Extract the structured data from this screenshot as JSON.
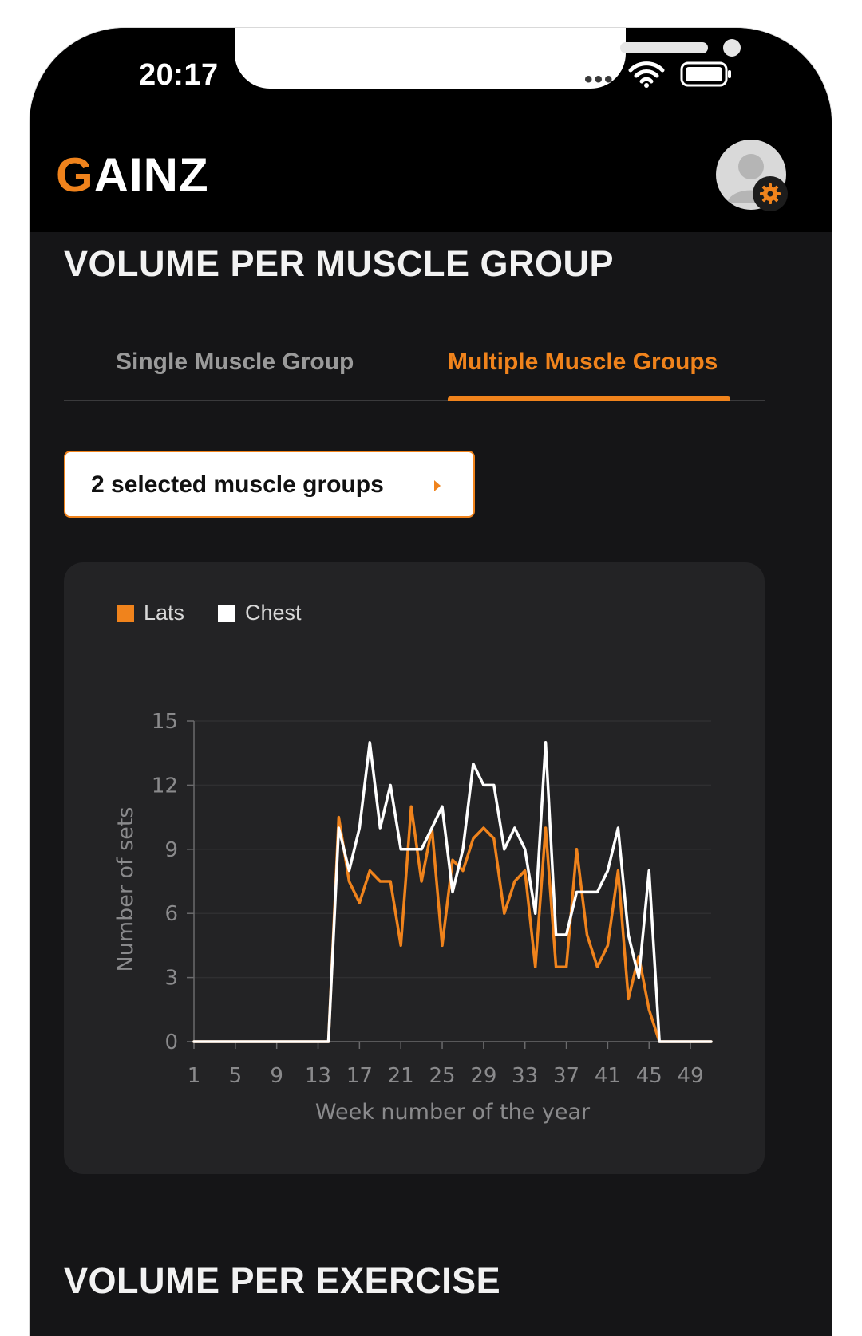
{
  "status_bar": {
    "time": "20:17"
  },
  "app": {
    "logo_first": "G",
    "logo_rest": "AINZ"
  },
  "header": {
    "title": "VOLUME PER MUSCLE GROUP"
  },
  "tabs": [
    {
      "label": "Single Muscle Group",
      "active": false
    },
    {
      "label": "Multiple Muscle Groups",
      "active": true
    }
  ],
  "selector": {
    "label": "2 selected muscle groups"
  },
  "colors": {
    "accent": "#f0831c",
    "chest": "#ffffff",
    "background": "#151517",
    "card": "#232325"
  },
  "chart_data": {
    "type": "line",
    "xlabel": "Week number of the year",
    "ylabel": "Number of sets",
    "ylim": [
      0,
      15
    ],
    "yticks": [
      0,
      3,
      6,
      9,
      12,
      15
    ],
    "xlim": [
      1,
      51
    ],
    "xticks": [
      1,
      5,
      9,
      13,
      17,
      21,
      25,
      29,
      33,
      37,
      41,
      45,
      49
    ],
    "legend_position": "top-left",
    "grid": true,
    "series": [
      {
        "name": "Lats",
        "color": "#f0831c",
        "x": [
          1,
          2,
          3,
          4,
          5,
          6,
          7,
          8,
          9,
          10,
          11,
          12,
          13,
          14,
          15,
          16,
          17,
          18,
          19,
          20,
          21,
          22,
          23,
          24,
          25,
          26,
          27,
          28,
          29,
          30,
          31,
          32,
          33,
          34,
          35,
          36,
          37,
          38,
          39,
          40,
          41,
          42,
          43,
          44,
          45,
          46,
          47,
          48,
          49,
          50,
          51
        ],
        "values": [
          0,
          0,
          0,
          0,
          0,
          0,
          0,
          0,
          0,
          0,
          0,
          0,
          0,
          0,
          10.5,
          7.5,
          6.5,
          8,
          7.5,
          7.5,
          4.5,
          11,
          7.5,
          10,
          4.5,
          8.5,
          8,
          9.5,
          10,
          9.5,
          6,
          7.5,
          8,
          3.5,
          10,
          3.5,
          3.5,
          9,
          5,
          3.5,
          4.5,
          8,
          2,
          4,
          1.5,
          0,
          0,
          0,
          0,
          0,
          0
        ]
      },
      {
        "name": "Chest",
        "color": "#ffffff",
        "x": [
          1,
          2,
          3,
          4,
          5,
          6,
          7,
          8,
          9,
          10,
          11,
          12,
          13,
          14,
          15,
          16,
          17,
          18,
          19,
          20,
          21,
          22,
          23,
          24,
          25,
          26,
          27,
          28,
          29,
          30,
          31,
          32,
          33,
          34,
          35,
          36,
          37,
          38,
          39,
          40,
          41,
          42,
          43,
          44,
          45,
          46,
          47,
          48,
          49,
          50,
          51
        ],
        "values": [
          0,
          0,
          0,
          0,
          0,
          0,
          0,
          0,
          0,
          0,
          0,
          0,
          0,
          0,
          10,
          8,
          10,
          14,
          10,
          12,
          9,
          9,
          9,
          10,
          11,
          7,
          9,
          13,
          12,
          12,
          9,
          10,
          9,
          6,
          14,
          5,
          5,
          7,
          7,
          7,
          8,
          10,
          5,
          3,
          8,
          0,
          0,
          0,
          0,
          0,
          0
        ]
      }
    ]
  },
  "next_section": {
    "title": "VOLUME PER EXERCISE"
  }
}
